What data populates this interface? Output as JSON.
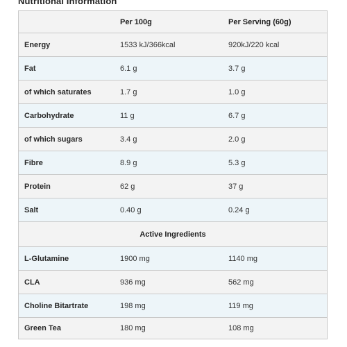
{
  "title": "Nutritional Information",
  "headers": {
    "col1": "",
    "col2": "Per 100g",
    "col3": "Per Serving (60g)"
  },
  "nutrients": [
    {
      "name": "Energy",
      "per100": "1533 kJ/366kcal",
      "serving": "920kJ/220 kcal"
    },
    {
      "name": "Fat",
      "per100": "6.1 g",
      "serving": "3.7 g"
    },
    {
      "name": "of which saturates",
      "per100": "1.7 g",
      "serving": "1.0 g"
    },
    {
      "name": "Carbohydrate",
      "per100": "11 g",
      "serving": "6.7 g"
    },
    {
      "name": "of which sugars",
      "per100": "3.4 g",
      "serving": "2.0 g"
    },
    {
      "name": "Fibre",
      "per100": "8.9 g",
      "serving": "5.3 g"
    },
    {
      "name": "Protein",
      "per100": "62 g",
      "serving": "37 g"
    },
    {
      "name": "Salt",
      "per100": "0.40 g",
      "serving": "0.24 g"
    }
  ],
  "active_section_label": "Active Ingredients",
  "actives": [
    {
      "name": "L-Glutamine",
      "per100": "1900 mg",
      "serving": "1140 mg"
    },
    {
      "name": "CLA",
      "per100": "936 mg",
      "serving": "562 mg"
    },
    {
      "name": "Choline Bitartrate",
      "per100": "198 mg",
      "serving": "119 mg"
    },
    {
      "name": "Green Tea",
      "per100": "180 mg",
      "serving": "108 mg"
    }
  ]
}
